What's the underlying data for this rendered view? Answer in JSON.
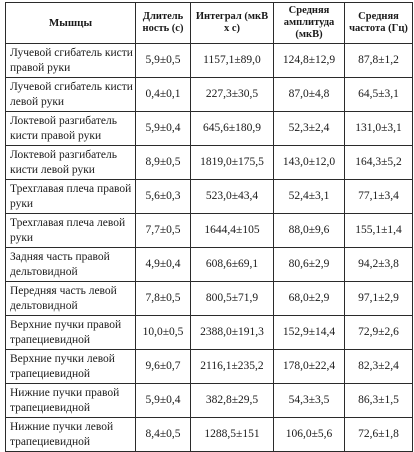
{
  "table": {
    "headers": [
      "Мышцы",
      "Длитель ность (с)",
      "Интеграл (мкВ х с)",
      "Средняя амплитуда (мкВ)",
      "Средняя частота (Гц)"
    ],
    "rows": [
      [
        "Лучевой сгибатель кисти правой руки",
        "5,9±0,5",
        "1157,1±89,0",
        "124,8±12,9",
        "87,8±1,2"
      ],
      [
        "Лучевой сгибатель кисти левой руки",
        "0,4±0,1",
        "227,3±30,5",
        "87,0±4,8",
        "64,5±3,1"
      ],
      [
        "Локтевой разгибатель кисти правой руки",
        "5,9±0,4",
        "645,6±180,9",
        "52,3±2,4",
        "131,0±3,1"
      ],
      [
        "Локтевой разгибатель кисти левой руки",
        "8,9±0,5",
        "1819,0±175,5",
        "143,0±12,0",
        "164,3±5,2"
      ],
      [
        "Трехглавая плеча правой руки",
        "5,6±0,3",
        "523,0±43,4",
        "52,4±3,1",
        "77,1±3,4"
      ],
      [
        "Трехглавая плеча левой руки",
        "7,7±0,5",
        "1644,4±105",
        "88,0±9,6",
        "155,1±1,4"
      ],
      [
        "Задняя часть правой дельтовидной",
        "4,9±0,4",
        "608,6±69,1",
        "80,6±2,9",
        "94,2±3,8"
      ],
      [
        "Передняя часть левой дельтовидной",
        "7,8±0,5",
        "800,5±71,9",
        "68,0±2,9",
        "97,1±2,9"
      ],
      [
        "Верхние пучки правой трапециевидной",
        "10,0±0,5",
        "2388,0±191,3",
        "152,9±14,4",
        "72,9±2,6"
      ],
      [
        "Верхние пучки левой трапециевидной",
        "9,6±0,7",
        "2116,1±235,2",
        "178,0±22,4",
        "82,3±2,4"
      ],
      [
        "Нижние пучки правой трапециевидной",
        "5,9±0,4",
        "382,8±29,5",
        "54,3±3,5",
        "86,3±1,5"
      ],
      [
        "Нижние пучки левой трапециевидной",
        "8,4±0,5",
        "1288,5±151",
        "106,0±5,6",
        "72,6±1,8"
      ]
    ]
  }
}
